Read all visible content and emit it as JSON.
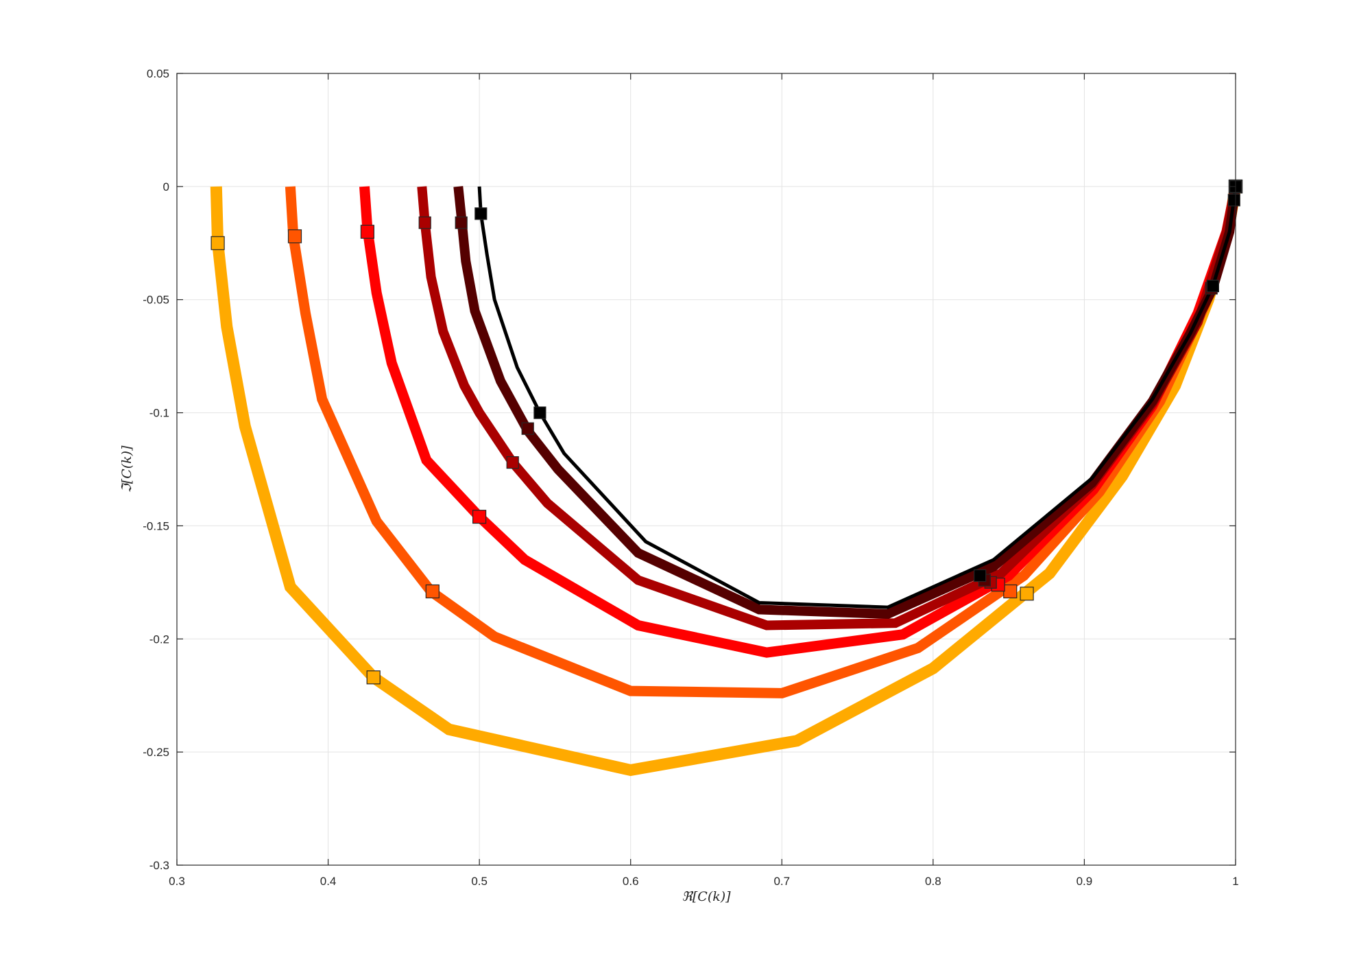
{
  "chart_data": {
    "type": "line",
    "title": "",
    "xlabel": "ℜ[C(k)]",
    "ylabel": "ℑ[C(k)]",
    "xlim": [
      0.3,
      1
    ],
    "ylim": [
      -0.3,
      0.05
    ],
    "xticks": [
      0.3,
      0.4,
      0.5,
      0.6,
      0.7,
      0.8,
      0.9,
      1
    ],
    "xtick_labels": [
      "0.3",
      "0.4",
      "0.5",
      "0.6",
      "0.7",
      "0.8",
      "0.9",
      "1"
    ],
    "yticks": [
      0.05,
      0,
      -0.05,
      -0.1,
      -0.15,
      -0.2,
      -0.25,
      -0.3
    ],
    "ytick_labels": [
      "0.05",
      "0",
      "-0.05",
      "-0.1",
      "-0.15",
      "-0.2",
      "-0.25",
      "-0.3"
    ],
    "grid": true,
    "legend": "none",
    "series": [
      {
        "color": "#FFAA00",
        "line_weight": "thickest",
        "x": [
          0.326,
          0.327,
          0.333,
          0.345,
          0.375,
          0.43,
          0.48,
          0.6,
          0.71,
          0.8,
          0.877,
          0.925,
          0.96,
          0.982,
          0.995,
          1.0
        ],
        "y": [
          0.0,
          -0.025,
          -0.062,
          -0.106,
          -0.177,
          -0.217,
          -0.24,
          -0.258,
          -0.245,
          -0.213,
          -0.171,
          -0.128,
          -0.088,
          -0.05,
          -0.02,
          0.0
        ],
        "markers": {
          "x": [
            0.327,
            0.43,
            0.862,
            1.0
          ],
          "y": [
            -0.025,
            -0.217,
            -0.18,
            0.0
          ]
        }
      },
      {
        "color": "#FF5500",
        "line_weight": "thick",
        "x": [
          0.375,
          0.377,
          0.385,
          0.396,
          0.432,
          0.468,
          0.51,
          0.6,
          0.7,
          0.79,
          0.86,
          0.91,
          0.95,
          0.98,
          0.995,
          1.0
        ],
        "y": [
          0.0,
          -0.022,
          -0.056,
          -0.094,
          -0.148,
          -0.179,
          -0.199,
          -0.223,
          -0.224,
          -0.204,
          -0.172,
          -0.135,
          -0.095,
          -0.052,
          -0.02,
          0.0
        ],
        "markers": {
          "x": [
            0.378,
            0.469,
            0.851,
            1.0
          ],
          "y": [
            -0.022,
            -0.179,
            -0.179,
            0.0
          ]
        }
      },
      {
        "color": "#FF0000",
        "line_weight": "thick",
        "x": [
          0.424,
          0.426,
          0.432,
          0.442,
          0.465,
          0.5,
          0.53,
          0.605,
          0.69,
          0.78,
          0.85,
          0.906,
          0.945,
          0.975,
          0.994,
          1.0
        ],
        "y": [
          0.0,
          -0.019,
          -0.047,
          -0.078,
          -0.121,
          -0.146,
          -0.165,
          -0.194,
          -0.206,
          -0.198,
          -0.172,
          -0.134,
          -0.097,
          -0.056,
          -0.02,
          0.0
        ],
        "markers": {
          "x": [
            0.426,
            0.5,
            0.843,
            1.0
          ],
          "y": [
            -0.02,
            -0.146,
            -0.176,
            0.0
          ]
        }
      },
      {
        "color": "#AA0000",
        "line_weight": "medium",
        "x": [
          0.462,
          0.464,
          0.468,
          0.476,
          0.49,
          0.5,
          0.522,
          0.545,
          0.605,
          0.69,
          0.775,
          0.845,
          0.905,
          0.945,
          0.975,
          0.994,
          1.0
        ],
        "y": [
          0.0,
          -0.016,
          -0.04,
          -0.064,
          -0.088,
          -0.1,
          -0.122,
          -0.14,
          -0.174,
          -0.194,
          -0.193,
          -0.171,
          -0.132,
          -0.096,
          -0.06,
          -0.02,
          0.0
        ],
        "markers": {
          "x": [
            0.464,
            0.522,
            0.838,
            1.0
          ],
          "y": [
            -0.016,
            -0.122,
            -0.175,
            0.0
          ]
        }
      },
      {
        "color": "#550000",
        "line_weight": "medium",
        "x": [
          0.486,
          0.488,
          0.491,
          0.497,
          0.514,
          0.532,
          0.552,
          0.605,
          0.685,
          0.77,
          0.84,
          0.905,
          0.945,
          0.97,
          0.985,
          0.996,
          1.0
        ],
        "y": [
          0.0,
          -0.013,
          -0.033,
          -0.055,
          -0.086,
          -0.108,
          -0.125,
          -0.162,
          -0.187,
          -0.189,
          -0.168,
          -0.131,
          -0.095,
          -0.065,
          -0.045,
          -0.02,
          0.0
        ],
        "markers": {
          "x": [
            0.488,
            0.532,
            0.834,
            0.984,
            1.0
          ],
          "y": [
            -0.016,
            -0.107,
            -0.174,
            -0.045,
            0.0
          ]
        }
      },
      {
        "color": "#000000",
        "line_weight": "thin",
        "x": [
          0.5,
          0.501,
          0.505,
          0.51,
          0.525,
          0.54,
          0.556,
          0.61,
          0.685,
          0.77,
          0.84,
          0.905,
          0.945,
          0.97,
          0.985,
          0.996,
          1.0
        ],
        "y": [
          0.0,
          -0.012,
          -0.03,
          -0.05,
          -0.08,
          -0.1,
          -0.118,
          -0.157,
          -0.184,
          -0.186,
          -0.165,
          -0.129,
          -0.094,
          -0.065,
          -0.044,
          -0.02,
          0.0
        ],
        "markers": {
          "x": [
            0.501,
            0.54,
            0.831,
            0.985,
            0.999,
            1.0
          ],
          "y": [
            -0.012,
            -0.1,
            -0.172,
            -0.044,
            -0.006,
            0.0
          ]
        }
      }
    ]
  }
}
